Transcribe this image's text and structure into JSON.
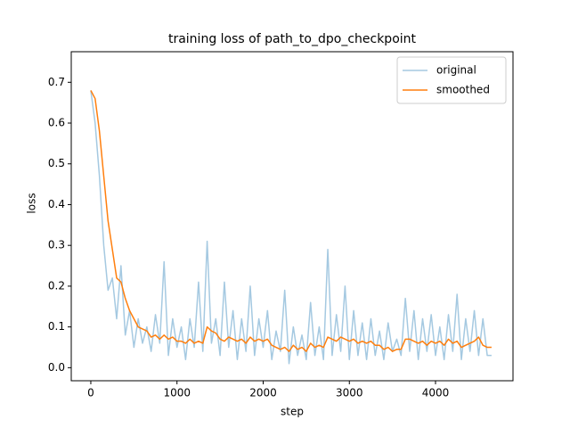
{
  "chart_data": {
    "type": "line",
    "title": "training loss of path_to_dpo_checkpoint",
    "x_label": "step",
    "y_label": "loss",
    "x": [
      0,
      50,
      100,
      150,
      200,
      250,
      300,
      350,
      400,
      450,
      500,
      550,
      600,
      650,
      700,
      750,
      800,
      850,
      900,
      950,
      1000,
      1050,
      1100,
      1150,
      1200,
      1250,
      1300,
      1350,
      1400,
      1450,
      1500,
      1550,
      1600,
      1650,
      1700,
      1750,
      1800,
      1850,
      1900,
      1950,
      2000,
      2050,
      2100,
      2150,
      2200,
      2250,
      2300,
      2350,
      2400,
      2450,
      2500,
      2550,
      2600,
      2650,
      2700,
      2750,
      2800,
      2850,
      2900,
      2950,
      3000,
      3050,
      3100,
      3150,
      3200,
      3250,
      3300,
      3350,
      3400,
      3450,
      3500,
      3550,
      3600,
      3650,
      3700,
      3750,
      3800,
      3850,
      3900,
      3950,
      4000,
      4050,
      4100,
      4150,
      4200,
      4250,
      4300,
      4350,
      4400,
      4450,
      4500,
      4550,
      4600,
      4650
    ],
    "series": [
      {
        "name": "original",
        "color": "#1f77b4",
        "opacity": 0.4,
        "values": [
          0.68,
          0.6,
          0.47,
          0.3,
          0.19,
          0.22,
          0.12,
          0.25,
          0.08,
          0.14,
          0.05,
          0.12,
          0.06,
          0.1,
          0.04,
          0.13,
          0.06,
          0.26,
          0.03,
          0.12,
          0.05,
          0.1,
          0.02,
          0.12,
          0.05,
          0.21,
          0.04,
          0.31,
          0.06,
          0.12,
          0.03,
          0.21,
          0.05,
          0.14,
          0.02,
          0.12,
          0.04,
          0.2,
          0.03,
          0.12,
          0.05,
          0.14,
          0.02,
          0.09,
          0.04,
          0.19,
          0.01,
          0.1,
          0.03,
          0.08,
          0.02,
          0.16,
          0.03,
          0.1,
          0.02,
          0.29,
          0.03,
          0.13,
          0.04,
          0.2,
          0.02,
          0.14,
          0.03,
          0.11,
          0.02,
          0.12,
          0.03,
          0.09,
          0.02,
          0.11,
          0.04,
          0.07,
          0.03,
          0.17,
          0.04,
          0.14,
          0.02,
          0.12,
          0.04,
          0.13,
          0.03,
          0.1,
          0.02,
          0.13,
          0.04,
          0.18,
          0.02,
          0.12,
          0.04,
          0.14,
          0.03,
          0.12,
          0.03,
          0.03
        ]
      },
      {
        "name": "smoothed",
        "color": "#ff7f0e",
        "opacity": 1,
        "values": [
          0.68,
          0.66,
          0.58,
          0.47,
          0.36,
          0.29,
          0.22,
          0.21,
          0.17,
          0.14,
          0.12,
          0.1,
          0.095,
          0.09,
          0.075,
          0.08,
          0.07,
          0.08,
          0.07,
          0.075,
          0.065,
          0.065,
          0.06,
          0.07,
          0.06,
          0.065,
          0.06,
          0.1,
          0.09,
          0.085,
          0.07,
          0.065,
          0.075,
          0.07,
          0.065,
          0.07,
          0.06,
          0.075,
          0.065,
          0.07,
          0.065,
          0.07,
          0.055,
          0.05,
          0.045,
          0.05,
          0.04,
          0.055,
          0.045,
          0.05,
          0.04,
          0.06,
          0.05,
          0.055,
          0.05,
          0.075,
          0.07,
          0.065,
          0.075,
          0.07,
          0.065,
          0.07,
          0.06,
          0.065,
          0.06,
          0.065,
          0.055,
          0.055,
          0.045,
          0.05,
          0.04,
          0.045,
          0.045,
          0.07,
          0.07,
          0.065,
          0.06,
          0.065,
          0.055,
          0.065,
          0.06,
          0.065,
          0.055,
          0.07,
          0.06,
          0.065,
          0.05,
          0.055,
          0.06,
          0.065,
          0.075,
          0.055,
          0.05,
          0.05
        ]
      }
    ],
    "xlim": [
      -227,
      4899
    ],
    "xticks": [
      0,
      1000,
      2000,
      3000,
      4000
    ],
    "ylim": [
      -0.032,
      0.775
    ],
    "yticks": [
      {
        "value": 0,
        "label": "0.0"
      },
      0.1,
      0.2,
      0.3,
      0.4,
      0.5,
      0.6,
      0.7
    ],
    "legend": "upper right"
  }
}
